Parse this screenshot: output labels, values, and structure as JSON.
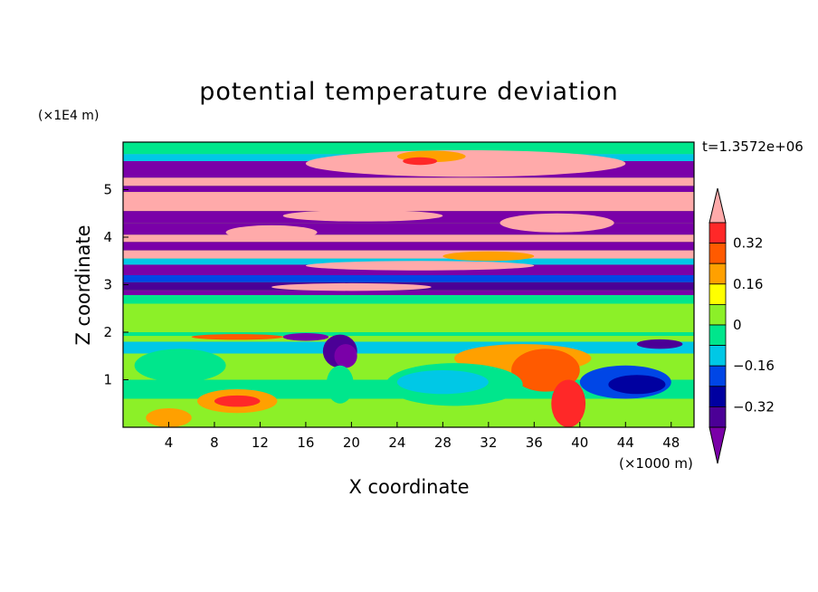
{
  "chart_data": {
    "type": "heatmap",
    "title": "potential temperature deviation",
    "xlabel": "X coordinate",
    "ylabel": "Z coordinate",
    "x_unit": "(×1000 m)",
    "y_unit": "(×1E4 m)",
    "time_label": "t=1.3572e+06",
    "xlim": [
      0,
      50
    ],
    "ylim": [
      0,
      6
    ],
    "x_ticks": [
      "4",
      "8",
      "12",
      "16",
      "20",
      "24",
      "28",
      "32",
      "36",
      "40",
      "44",
      "48"
    ],
    "y_ticks": [
      "1",
      "2",
      "3",
      "4",
      "5"
    ],
    "colorbar": {
      "levels": [
        -0.4,
        -0.32,
        -0.24,
        -0.16,
        -0.08,
        0,
        0.08,
        0.16,
        0.24,
        0.32,
        0.4
      ],
      "tick_labels": [
        "0.32",
        "0.16",
        "0",
        "−0.16",
        "−0.32"
      ],
      "colors": [
        "#7a00a8",
        "#4b0096",
        "#0000a0",
        "#0046e6",
        "#00c8e6",
        "#00e68c",
        "#8cf028",
        "#ffff00",
        "#ffa000",
        "#ff5a00",
        "#ff2828",
        "#ffaaaa"
      ]
    }
  }
}
